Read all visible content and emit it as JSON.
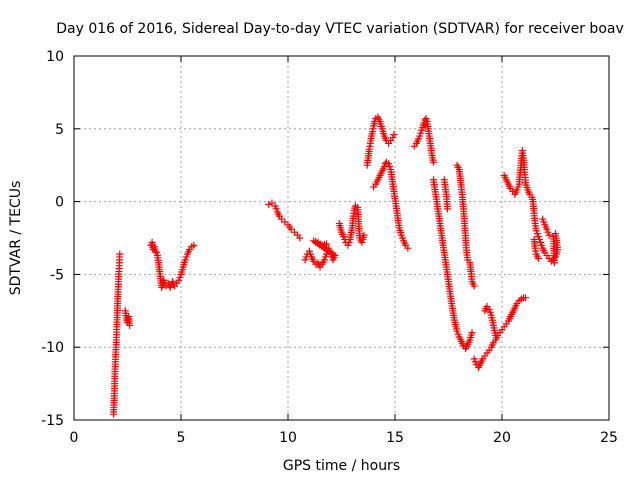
{
  "chart_data": {
    "type": "scatter",
    "title": "Day 016 of 2016, Sidereal Day-to-day VTEC variation (SDTVAR) for receiver boav",
    "xlabel": "GPS time / hours",
    "ylabel": "SDTVAR / TECUs",
    "xlim": [
      0,
      25
    ],
    "ylim": [
      -15,
      10
    ],
    "xticks": [
      0,
      5,
      10,
      15,
      20,
      25
    ],
    "yticks": [
      -15,
      -10,
      -5,
      0,
      5,
      10
    ],
    "grid": true,
    "marker": "+",
    "color": "#ff0000",
    "segments": [
      [
        [
          1.85,
          -14.6
        ],
        [
          1.88,
          -13.5
        ],
        [
          1.9,
          -12.5
        ],
        [
          1.92,
          -11.5
        ],
        [
          1.95,
          -10.5
        ],
        [
          1.98,
          -9.5
        ],
        [
          2.0,
          -8.6
        ],
        [
          2.02,
          -7.8
        ],
        [
          2.04,
          -7.0
        ],
        [
          2.06,
          -6.2
        ],
        [
          2.08,
          -5.5
        ],
        [
          2.1,
          -4.8
        ],
        [
          2.12,
          -4.2
        ],
        [
          2.14,
          -3.6
        ]
      ],
      [
        [
          2.4,
          -7.5
        ],
        [
          2.45,
          -8.0
        ],
        [
          2.5,
          -8.3
        ],
        [
          2.55,
          -7.9
        ],
        [
          2.6,
          -8.5
        ]
      ],
      [
        [
          3.6,
          -3.0
        ],
        [
          3.65,
          -2.8
        ],
        [
          3.7,
          -3.3
        ],
        [
          3.75,
          -3.1
        ],
        [
          3.8,
          -3.4
        ],
        [
          3.85,
          -3.5
        ],
        [
          3.9,
          -3.7
        ],
        [
          3.95,
          -4.2
        ],
        [
          4.0,
          -4.8
        ],
        [
          4.05,
          -5.3
        ],
        [
          4.1,
          -5.9
        ],
        [
          4.2,
          -5.4
        ],
        [
          4.3,
          -5.8
        ],
        [
          4.4,
          -5.6
        ],
        [
          4.5,
          -5.9
        ],
        [
          4.6,
          -5.5
        ],
        [
          4.7,
          -5.8
        ],
        [
          4.8,
          -5.6
        ],
        [
          4.9,
          -5.4
        ],
        [
          5.0,
          -5.0
        ],
        [
          5.1,
          -4.5
        ],
        [
          5.2,
          -4.0
        ],
        [
          5.3,
          -3.6
        ],
        [
          5.4,
          -3.3
        ],
        [
          5.5,
          -3.1
        ],
        [
          5.6,
          -3.0
        ]
      ],
      [
        [
          9.1,
          -0.2
        ],
        [
          9.25,
          -0.1
        ],
        [
          9.4,
          -0.3
        ],
        [
          9.5,
          -0.7
        ],
        [
          9.6,
          -1.0
        ],
        [
          9.7,
          -1.2
        ],
        [
          9.85,
          -1.4
        ],
        [
          10.0,
          -1.6
        ],
        [
          10.15,
          -1.9
        ],
        [
          10.3,
          -2.1
        ],
        [
          10.45,
          -2.3
        ],
        [
          10.55,
          -2.5
        ]
      ],
      [
        [
          10.8,
          -4.0
        ],
        [
          10.9,
          -3.6
        ],
        [
          11.0,
          -3.4
        ],
        [
          11.1,
          -3.8
        ],
        [
          11.2,
          -4.1
        ],
        [
          11.3,
          -4.3
        ],
        [
          11.4,
          -4.2
        ],
        [
          11.5,
          -4.5
        ],
        [
          11.6,
          -4.3
        ],
        [
          11.7,
          -4.0
        ],
        [
          11.8,
          -3.6
        ],
        [
          11.9,
          -3.2
        ],
        [
          12.0,
          -3.6
        ],
        [
          12.1,
          -4.0
        ],
        [
          12.2,
          -3.7
        ],
        [
          11.2,
          -2.7
        ],
        [
          11.4,
          -2.8
        ],
        [
          11.6,
          -3.0
        ],
        [
          11.8,
          -2.9
        ]
      ],
      [
        [
          12.4,
          -1.5
        ],
        [
          12.5,
          -2.1
        ],
        [
          12.6,
          -2.4
        ],
        [
          12.7,
          -2.8
        ],
        [
          12.8,
          -3.0
        ],
        [
          12.9,
          -2.6
        ],
        [
          13.0,
          -1.8
        ],
        [
          13.05,
          -1.0
        ],
        [
          13.1,
          -0.6
        ],
        [
          13.15,
          -0.3
        ],
        [
          13.25,
          -0.4
        ],
        [
          13.35,
          -2.5
        ],
        [
          13.45,
          -2.8
        ],
        [
          13.5,
          -2.6
        ],
        [
          13.55,
          -2.3
        ]
      ],
      [
        [
          13.7,
          2.5
        ],
        [
          13.75,
          3.0
        ],
        [
          13.8,
          3.6
        ],
        [
          13.85,
          4.0
        ],
        [
          13.9,
          4.5
        ],
        [
          13.95,
          4.8
        ],
        [
          14.0,
          5.2
        ],
        [
          14.05,
          5.5
        ],
        [
          14.1,
          5.7
        ],
        [
          14.2,
          5.8
        ],
        [
          14.3,
          5.5
        ],
        [
          14.4,
          5.0
        ],
        [
          14.5,
          4.5
        ],
        [
          14.6,
          4.2
        ],
        [
          14.7,
          4.0
        ],
        [
          14.8,
          4.2
        ],
        [
          14.9,
          4.4
        ],
        [
          14.95,
          4.6
        ]
      ],
      [
        [
          14.0,
          1.0
        ],
        [
          14.1,
          1.2
        ],
        [
          14.2,
          1.5
        ],
        [
          14.3,
          1.8
        ],
        [
          14.4,
          2.1
        ],
        [
          14.5,
          2.4
        ],
        [
          14.55,
          2.6
        ],
        [
          14.6,
          2.7
        ],
        [
          14.7,
          2.6
        ],
        [
          14.8,
          2.2
        ],
        [
          14.85,
          1.7
        ],
        [
          14.9,
          1.2
        ],
        [
          14.95,
          0.7
        ],
        [
          15.0,
          0.2
        ],
        [
          15.05,
          -0.3
        ],
        [
          15.1,
          -0.8
        ],
        [
          15.15,
          -1.3
        ],
        [
          15.2,
          -1.8
        ],
        [
          15.3,
          -2.3
        ],
        [
          15.4,
          -2.7
        ],
        [
          15.5,
          -3.0
        ],
        [
          15.6,
          -3.2
        ]
      ],
      [
        [
          15.9,
          3.8
        ],
        [
          16.0,
          4.0
        ],
        [
          16.1,
          4.3
        ],
        [
          16.2,
          4.7
        ],
        [
          16.3,
          5.1
        ],
        [
          16.35,
          5.4
        ],
        [
          16.4,
          5.6
        ],
        [
          16.45,
          5.7
        ],
        [
          16.5,
          5.5
        ],
        [
          16.55,
          5.0
        ],
        [
          16.6,
          4.5
        ],
        [
          16.65,
          4.0
        ],
        [
          16.7,
          3.5
        ],
        [
          16.75,
          3.0
        ],
        [
          16.8,
          2.7
        ]
      ],
      [
        [
          16.8,
          1.5
        ],
        [
          16.85,
          1.0
        ],
        [
          16.9,
          0.5
        ],
        [
          17.0,
          -0.5
        ],
        [
          17.1,
          -1.5
        ],
        [
          17.2,
          -2.5
        ],
        [
          17.3,
          -3.5
        ],
        [
          17.4,
          -4.5
        ],
        [
          17.5,
          -5.5
        ],
        [
          17.6,
          -6.5
        ],
        [
          17.7,
          -7.5
        ],
        [
          17.8,
          -8.3
        ],
        [
          17.9,
          -8.9
        ],
        [
          18.0,
          -9.3
        ],
        [
          18.1,
          -9.6
        ],
        [
          18.2,
          -9.9
        ],
        [
          18.3,
          -10.1
        ],
        [
          18.4,
          -9.8
        ],
        [
          18.5,
          -9.5
        ],
        [
          18.6,
          -9.0
        ]
      ],
      [
        [
          17.3,
          1.5
        ],
        [
          17.4,
          0.5
        ],
        [
          17.45,
          -0.5
        ]
      ],
      [
        [
          17.9,
          2.5
        ],
        [
          18.0,
          2.2
        ],
        [
          18.05,
          1.6
        ],
        [
          18.1,
          1.0
        ],
        [
          18.15,
          0.3
        ],
        [
          18.2,
          -0.5
        ],
        [
          18.25,
          -1.5
        ],
        [
          18.3,
          -2.5
        ],
        [
          18.35,
          -3.5
        ],
        [
          18.4,
          -4.0
        ]
      ],
      [
        [
          18.5,
          -4.2
        ],
        [
          18.55,
          -4.8
        ],
        [
          18.6,
          -5.5
        ],
        [
          18.7,
          -5.8
        ]
      ],
      [
        [
          18.7,
          -10.8
        ],
        [
          18.8,
          -11.2
        ],
        [
          18.9,
          -11.4
        ],
        [
          19.0,
          -11.1
        ],
        [
          19.1,
          -10.8
        ],
        [
          19.2,
          -10.6
        ],
        [
          19.3,
          -10.4
        ],
        [
          19.4,
          -10.2
        ],
        [
          19.5,
          -10.0
        ],
        [
          19.6,
          -9.7
        ],
        [
          19.7,
          -9.5
        ],
        [
          19.8,
          -9.2
        ],
        [
          19.9,
          -9.0
        ],
        [
          20.0,
          -8.8
        ],
        [
          20.1,
          -8.6
        ],
        [
          20.2,
          -8.4
        ],
        [
          20.3,
          -8.2
        ],
        [
          20.4,
          -7.9
        ],
        [
          20.5,
          -7.6
        ],
        [
          20.6,
          -7.3
        ],
        [
          20.7,
          -7.0
        ],
        [
          20.8,
          -6.8
        ],
        [
          20.9,
          -6.7
        ],
        [
          21.0,
          -6.6
        ],
        [
          21.1,
          -6.6
        ]
      ],
      [
        [
          19.2,
          -7.5
        ],
        [
          19.3,
          -7.2
        ],
        [
          19.4,
          -7.4
        ],
        [
          19.5,
          -7.8
        ],
        [
          19.6,
          -8.5
        ],
        [
          19.7,
          -9.2
        ]
      ],
      [
        [
          20.1,
          1.8
        ],
        [
          20.2,
          1.5
        ],
        [
          20.3,
          1.2
        ],
        [
          20.4,
          0.9
        ],
        [
          20.5,
          0.7
        ],
        [
          20.6,
          0.5
        ],
        [
          20.7,
          0.8
        ],
        [
          20.8,
          1.2
        ],
        [
          20.85,
          2.0
        ],
        [
          20.9,
          2.8
        ],
        [
          20.95,
          3.5
        ],
        [
          21.0,
          3.0
        ],
        [
          21.05,
          2.2
        ],
        [
          21.1,
          1.3
        ],
        [
          21.2,
          0.8
        ],
        [
          21.3,
          0.5
        ],
        [
          21.4,
          0.3
        ],
        [
          21.45,
          0.0
        ],
        [
          21.5,
          -0.8
        ],
        [
          21.55,
          -1.5
        ],
        [
          21.6,
          -2.0
        ],
        [
          21.7,
          -2.4
        ],
        [
          21.8,
          -2.8
        ],
        [
          21.9,
          -3.2
        ],
        [
          22.0,
          -3.5
        ],
        [
          22.1,
          -3.7
        ],
        [
          22.2,
          -3.9
        ],
        [
          22.3,
          -4.1
        ],
        [
          22.4,
          -4.0
        ],
        [
          22.5,
          -3.8
        ],
        [
          22.55,
          -3.6
        ],
        [
          22.6,
          -3.3
        ],
        [
          22.5,
          -2.2
        ],
        [
          22.4,
          -2.4
        ],
        [
          22.45,
          -4.2
        ]
      ],
      [
        [
          21.5,
          -2.6
        ],
        [
          21.55,
          -3.2
        ],
        [
          21.6,
          -3.6
        ],
        [
          21.7,
          -3.9
        ]
      ],
      [
        [
          21.9,
          -1.2
        ],
        [
          22.0,
          -1.6
        ],
        [
          22.1,
          -1.9
        ],
        [
          22.2,
          -2.3
        ]
      ]
    ]
  }
}
